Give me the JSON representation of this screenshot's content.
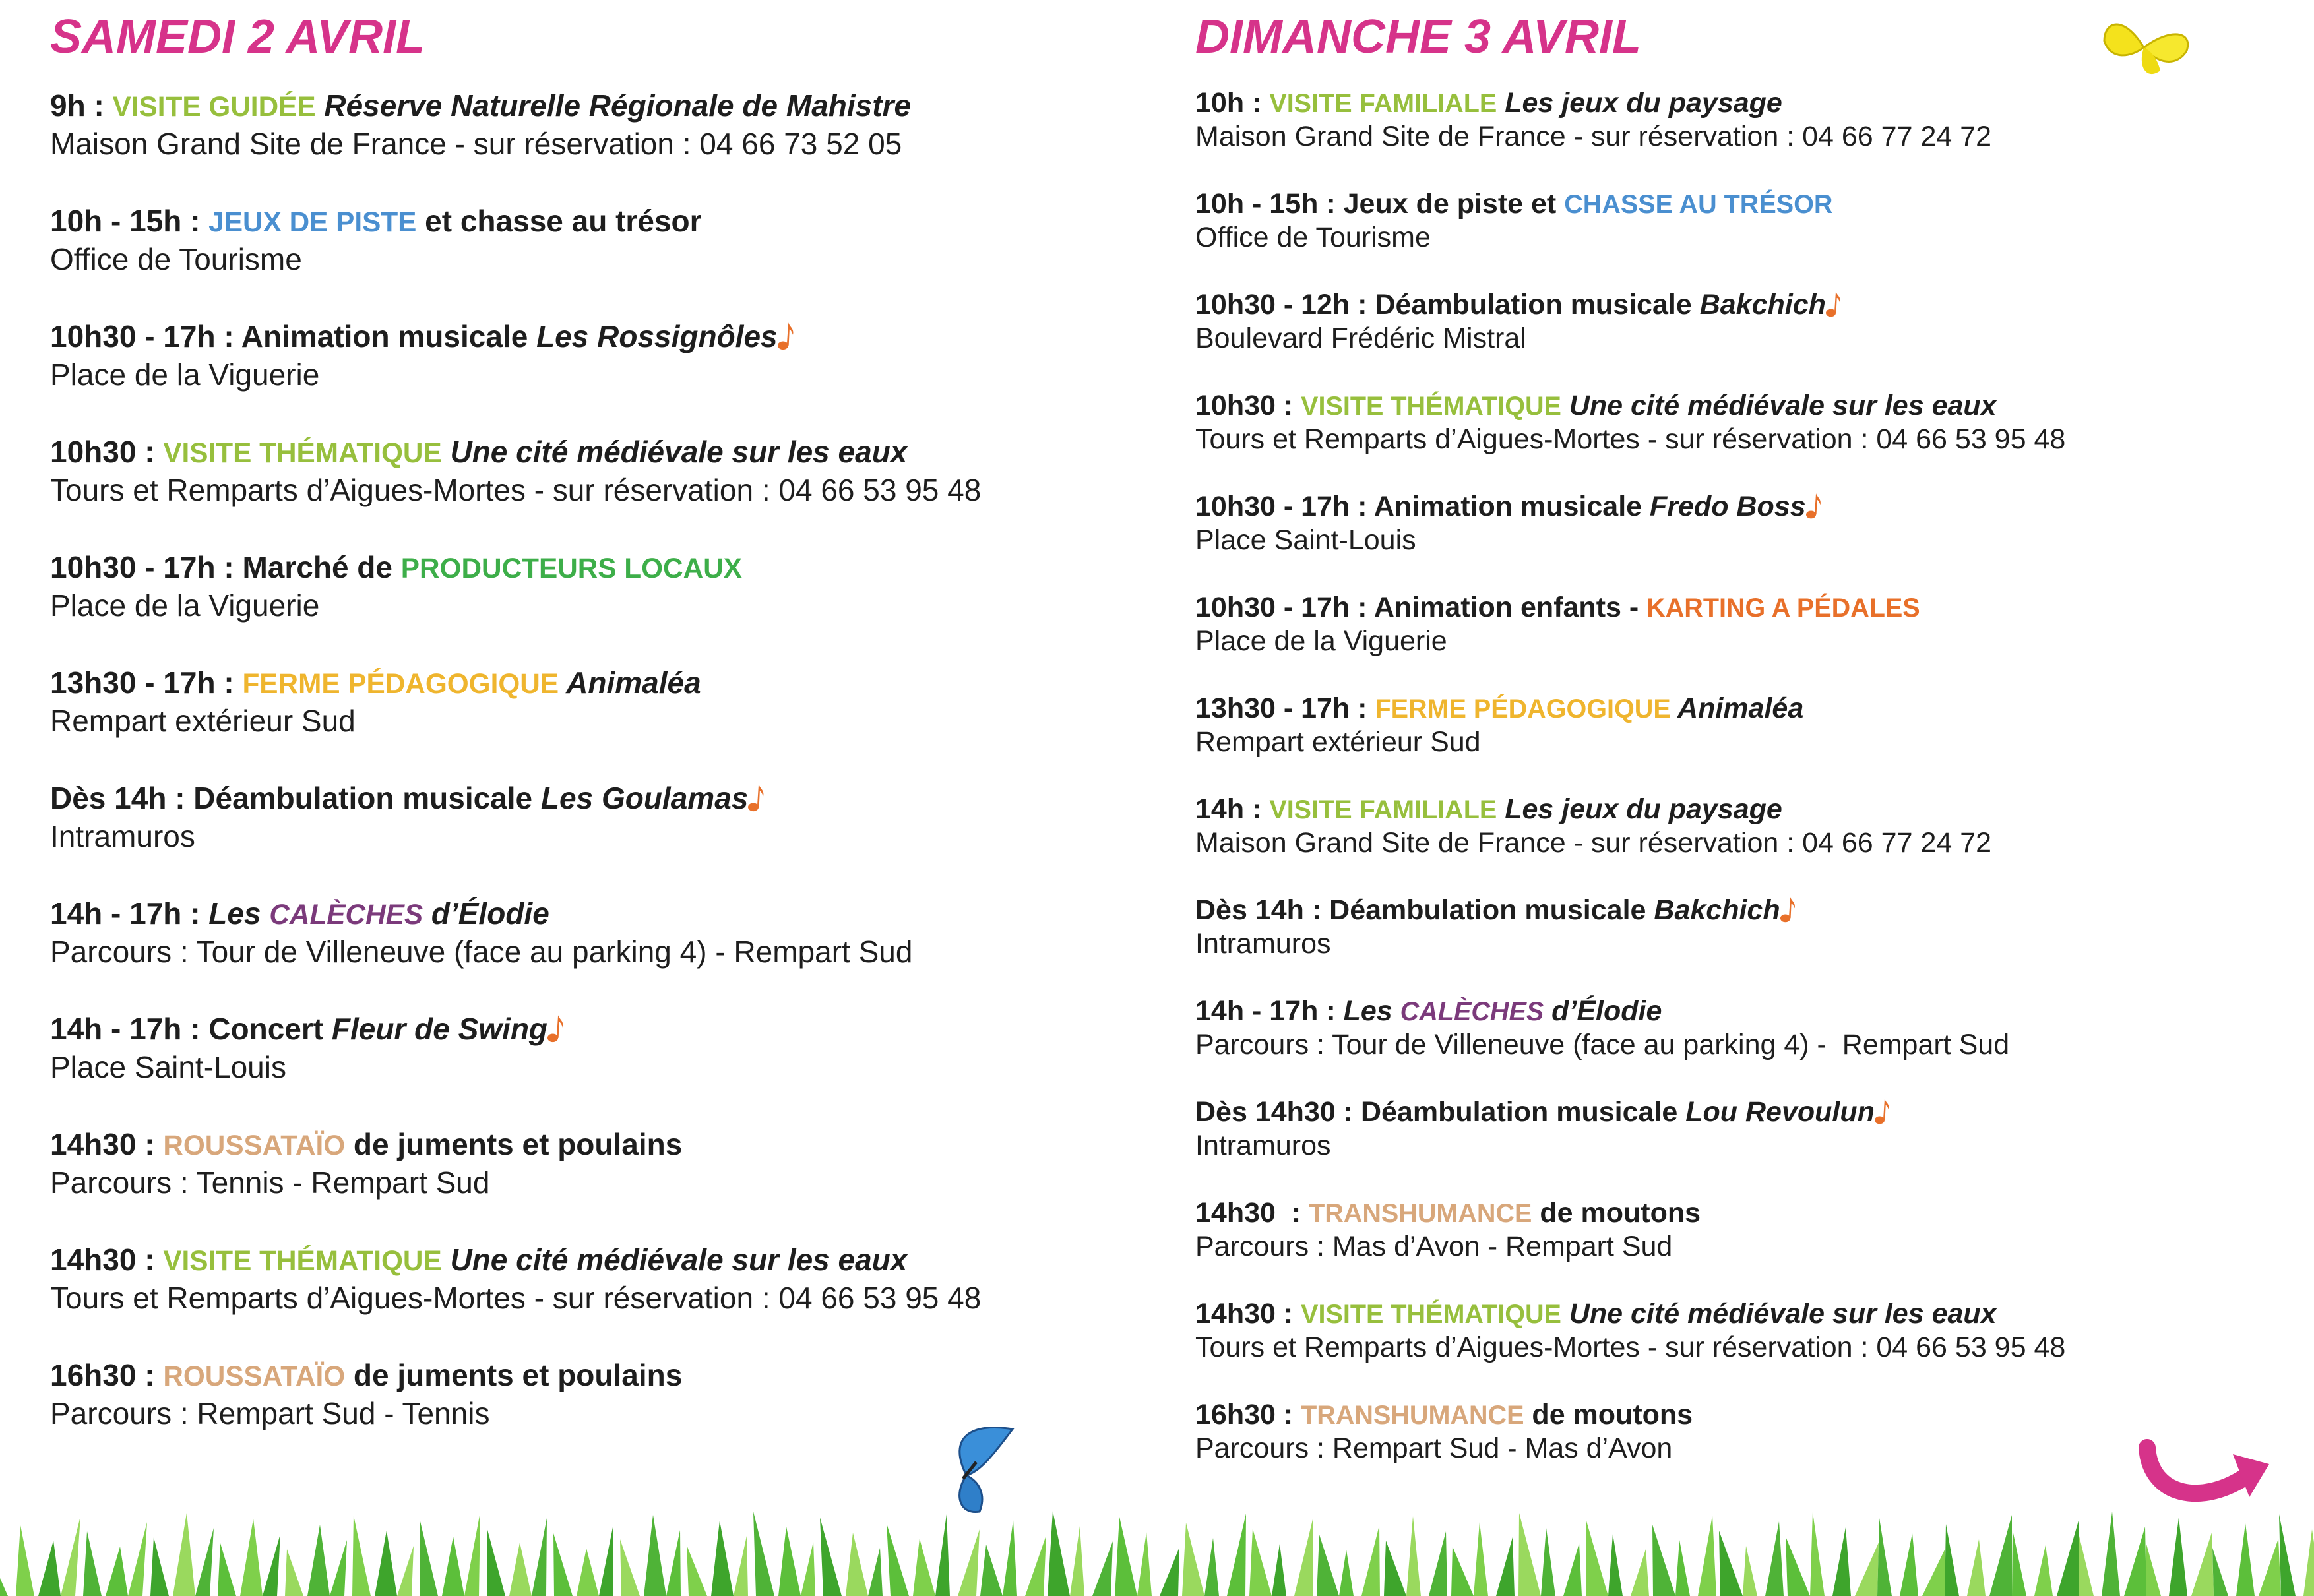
{
  "days": [
    {
      "title": "SAMEDI 2 AVRIL",
      "events": [
        {
          "segments": [
            {
              "text": "9h : "
            },
            {
              "text": "VISITE GUIDÉE",
              "color": "#97bf3d"
            },
            {
              "text": " Réserve Naturelle Régionale de Mahistre",
              "italic": true
            }
          ],
          "location": "Maison Grand Site de France - sur réservation : 04 66 73 52 05"
        },
        {
          "segments": [
            {
              "text": "10h - 15h : "
            },
            {
              "text": "JEUX DE PISTE",
              "color": "#4a8fd0"
            },
            {
              "text": " et chasse au trésor"
            }
          ],
          "location": "Office de Tourisme"
        },
        {
          "segments": [
            {
              "text": "10h30 - 17h : Animation musicale "
            },
            {
              "text": "Les Rossignôles",
              "italic": true
            }
          ],
          "note": true,
          "location": "Place de la Viguerie"
        },
        {
          "segments": [
            {
              "text": "10h30 : "
            },
            {
              "text": "VISITE THÉMATIQUE",
              "color": "#97bf3d"
            },
            {
              "text": " Une cité médiévale sur les eaux",
              "italic": true
            }
          ],
          "location": "Tours et Remparts d’Aigues-Mortes - sur réservation : 04 66 53 95 48"
        },
        {
          "segments": [
            {
              "text": "10h30 - 17h : Marché de "
            },
            {
              "text": "PRODUCTEURS LOCAUX",
              "color": "#3dae49"
            }
          ],
          "location": "Place de la Viguerie"
        },
        {
          "segments": [
            {
              "text": "13h30 - 17h : "
            },
            {
              "text": "FERME PÉDAGOGIQUE",
              "color": "#efb52e"
            },
            {
              "text": " Animaléa",
              "italic": true
            }
          ],
          "location": "Rempart extérieur Sud"
        },
        {
          "segments": [
            {
              "text": "Dès 14h : Déambulation musicale "
            },
            {
              "text": "Les Goulamas",
              "italic": true
            }
          ],
          "note": true,
          "location": "Intramuros"
        },
        {
          "segments": [
            {
              "text": "14h - 17h : "
            },
            {
              "text": "Les ",
              "italic": true
            },
            {
              "text": "CALÈCHES",
              "color": "#7b3a7b",
              "italic": true
            },
            {
              "text": " d’Élodie",
              "italic": true
            }
          ],
          "location": "Parcours : Tour de Villeneuve (face au parking 4) - Rempart Sud"
        },
        {
          "segments": [
            {
              "text": "14h - 17h : Concert "
            },
            {
              "text": "Fleur de Swing",
              "italic": true
            }
          ],
          "note": true,
          "location": "Place Saint-Louis"
        },
        {
          "segments": [
            {
              "text": "14h30 : "
            },
            {
              "text": "ROUSSATAÏO",
              "color": "#d8a77b"
            },
            {
              "text": " de juments et poulains"
            }
          ],
          "location": "Parcours : Tennis - Rempart Sud"
        },
        {
          "segments": [
            {
              "text": "14h30 : "
            },
            {
              "text": "VISITE THÉMATIQUE",
              "color": "#97bf3d"
            },
            {
              "text": " Une cité médiévale sur les eaux",
              "italic": true
            }
          ],
          "location": "Tours et Remparts d’Aigues-Mortes - sur réservation : 04 66 53 95 48"
        },
        {
          "segments": [
            {
              "text": "16h30 : "
            },
            {
              "text": "ROUSSATAÏO",
              "color": "#d8a77b"
            },
            {
              "text": " de juments et poulains"
            }
          ],
          "location": "Parcours : Rempart Sud - Tennis"
        }
      ]
    },
    {
      "title": "DIMANCHE 3 AVRIL",
      "events": [
        {
          "segments": [
            {
              "text": "10h : "
            },
            {
              "text": "VISITE FAMILIALE",
              "color": "#97bf3d"
            },
            {
              "text": " Les jeux du paysage",
              "italic": true
            }
          ],
          "location": "Maison Grand Site de France - sur réservation : 04 66 77 24 72"
        },
        {
          "segments": [
            {
              "text": "10h - 15h : Jeux de piste et "
            },
            {
              "text": "CHASSE AU TRÉSOR",
              "color": "#4a8fd0"
            }
          ],
          "location": "Office de Tourisme"
        },
        {
          "segments": [
            {
              "text": "10h30 - 12h : Déambulation musicale "
            },
            {
              "text": "Bakchich",
              "italic": true
            }
          ],
          "note": true,
          "location": "Boulevard Frédéric Mistral"
        },
        {
          "segments": [
            {
              "text": "10h30 : "
            },
            {
              "text": "VISITE THÉMATIQUE",
              "color": "#97bf3d"
            },
            {
              "text": " Une cité médiévale sur les eaux",
              "italic": true
            }
          ],
          "location": "Tours et Remparts d’Aigues-Mortes - sur réservation : 04 66 53 95 48"
        },
        {
          "segments": [
            {
              "text": "10h30 - 17h : Animation musicale "
            },
            {
              "text": "Fredo Boss",
              "italic": true
            }
          ],
          "note": true,
          "location": "Place Saint-Louis"
        },
        {
          "segments": [
            {
              "text": "10h30 - 17h : Animation enfants - "
            },
            {
              "text": "KARTING A PÉDALES",
              "color": "#e8702a"
            }
          ],
          "location": "Place de la Viguerie"
        },
        {
          "segments": [
            {
              "text": "13h30 - 17h : "
            },
            {
              "text": "FERME PÉDAGOGIQUE",
              "color": "#efb52e"
            },
            {
              "text": " Animaléa",
              "italic": true
            }
          ],
          "location": "Rempart extérieur Sud"
        },
        {
          "segments": [
            {
              "text": "14h : "
            },
            {
              "text": "VISITE FAMILIALE",
              "color": "#97bf3d"
            },
            {
              "text": " Les jeux du paysage",
              "italic": true
            }
          ],
          "location": "Maison Grand Site de France - sur réservation : 04 66 77 24 72"
        },
        {
          "segments": [
            {
              "text": "Dès 14h : Déambulation musicale "
            },
            {
              "text": "Bakchich",
              "italic": true
            }
          ],
          "note": true,
          "location": "Intramuros"
        },
        {
          "segments": [
            {
              "text": "14h - 17h : "
            },
            {
              "text": "Les ",
              "italic": true
            },
            {
              "text": "CALÈCHES",
              "color": "#7b3a7b",
              "italic": true
            },
            {
              "text": " d’Élodie",
              "italic": true
            }
          ],
          "location": "Parcours : Tour de Villeneuve (face au parking 4) -  Rempart Sud"
        },
        {
          "segments": [
            {
              "text": "Dès 14h30 : Déambulation musicale "
            },
            {
              "text": "Lou Revoulun",
              "italic": true
            }
          ],
          "note": true,
          "location": "Intramuros"
        },
        {
          "segments": [
            {
              "text": "14h30  : "
            },
            {
              "text": "TRANSHUMANCE",
              "color": "#d8a77b"
            },
            {
              "text": " de moutons"
            }
          ],
          "location": "Parcours : Mas d’Avon - Rempart Sud"
        },
        {
          "segments": [
            {
              "text": "14h30 : "
            },
            {
              "text": "VISITE THÉMATIQUE",
              "color": "#97bf3d"
            },
            {
              "text": " Une cité médiévale sur les eaux",
              "italic": true
            }
          ],
          "location": "Tours et Remparts d’Aigues-Mortes - sur réservation : 04 66 53 95 48"
        },
        {
          "segments": [
            {
              "text": "16h30 : "
            },
            {
              "text": "TRANSHUMANCE",
              "color": "#d8a77b"
            },
            {
              "text": " de moutons"
            }
          ],
          "location": "Parcours : Rempart Sud - Mas d’Avon"
        }
      ]
    }
  ]
}
